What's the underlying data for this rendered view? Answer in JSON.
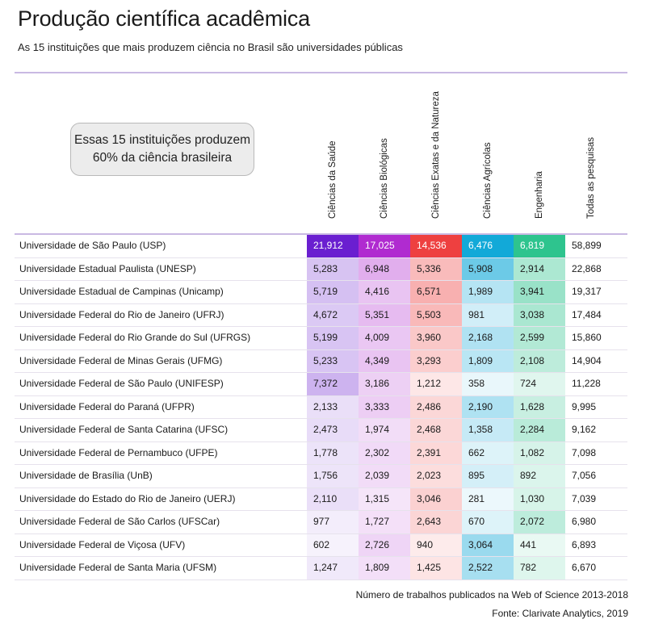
{
  "title": "Produção científica acadêmica",
  "subtitle": "As 15 instituições que mais produzem ciência no Brasil são universidades públicas",
  "callout": {
    "line1": "Essas 15 instituições produzem",
    "line2": "60% da ciência brasileira"
  },
  "footer": {
    "note": "Número de trabalhos publicados na Web of Science 2013-2018",
    "source": "Fonte: Clarivate Analytics, 2019"
  },
  "colors": {
    "saude": "#6a1fd0",
    "biologicas": "#b02bd0",
    "exatas": "#ee4040",
    "agricolas": "#12a9d8",
    "engenharia": "#2ec48e",
    "rule": "#c9b9e3"
  },
  "chart_data": {
    "type": "table",
    "title": "Produção científica acadêmica",
    "columns": [
      "Ciências da Saúde",
      "Ciências Biológicas",
      "Ciências Exatas e da Natureza",
      "Ciências Agrícolas",
      "Engenharia",
      "Todas as pesquisas"
    ],
    "rows": [
      {
        "name": "Universidade de São Paulo (USP)",
        "values": [
          "21,912",
          "17,025",
          "14,536",
          "6,476",
          "6,819",
          "58,899"
        ]
      },
      {
        "name": "Universidade Estadual Paulista (UNESP)",
        "values": [
          "5,283",
          "6,948",
          "5,336",
          "5,908",
          "2,914",
          "22,868"
        ]
      },
      {
        "name": "Universidade Estadual de Campinas  (Unicamp)",
        "values": [
          "5,719",
          "4,416",
          "6,571",
          "1,989",
          "3,941",
          "19,317"
        ]
      },
      {
        "name": "Universidade Federal do Rio de Janeiro (UFRJ)",
        "values": [
          "4,672",
          "5,351",
          "5,503",
          "981",
          "3,038",
          "17,484"
        ]
      },
      {
        "name": "Universidade Federal do Rio Grande do Sul (UFRGS)",
        "values": [
          "5,199",
          "4,009",
          "3,960",
          "2,168",
          "2,599",
          "15,860"
        ]
      },
      {
        "name": "Universidade Federal de Minas Gerais (UFMG)",
        "values": [
          "5,233",
          "4,349",
          "3,293",
          "1,809",
          "2,108",
          "14,904"
        ]
      },
      {
        "name": "Universidade Federal de São Paulo (UNIFESP)",
        "values": [
          "7,372",
          "3,186",
          "1,212",
          "358",
          "724",
          "11,228"
        ]
      },
      {
        "name": "Universidade Federal do Paraná (UFPR)",
        "values": [
          "2,133",
          "3,333",
          "2,486",
          "2,190",
          "1,628",
          "9,995"
        ]
      },
      {
        "name": "Universidade Federal de Santa Catarina (UFSC)",
        "values": [
          "2,473",
          "1,974",
          "2,468",
          "1,358",
          "2,284",
          "9,162"
        ]
      },
      {
        "name": "Universidade Federal de Pernambuco (UFPE)",
        "values": [
          "1,778",
          "2,302",
          "2,391",
          "662",
          "1,082",
          "7,098"
        ]
      },
      {
        "name": "Universidade de Brasília (UnB)",
        "values": [
          "1,756",
          "2,039",
          "2,023",
          "895",
          "892",
          "7,056"
        ]
      },
      {
        "name": "Universidade do Estado do Rio de Janeiro (UERJ)",
        "values": [
          "2,110",
          "1,315",
          "3,046",
          "281",
          "1,030",
          "7,039"
        ]
      },
      {
        "name": "Universidade Federal de São Carlos (UFSCar)",
        "values": [
          "977",
          "1,727",
          "2,643",
          "670",
          "2,072",
          "6,980"
        ]
      },
      {
        "name": "Universidade Federal de Viçosa (UFV)",
        "values": [
          "602",
          "2,726",
          "940",
          "3,064",
          "441",
          "6,893"
        ]
      },
      {
        "name": "Universidade Federal de Santa Maria (UFSM)",
        "values": [
          "1,247",
          "1,809",
          "1,425",
          "2,522",
          "782",
          "6,670"
        ]
      }
    ]
  }
}
